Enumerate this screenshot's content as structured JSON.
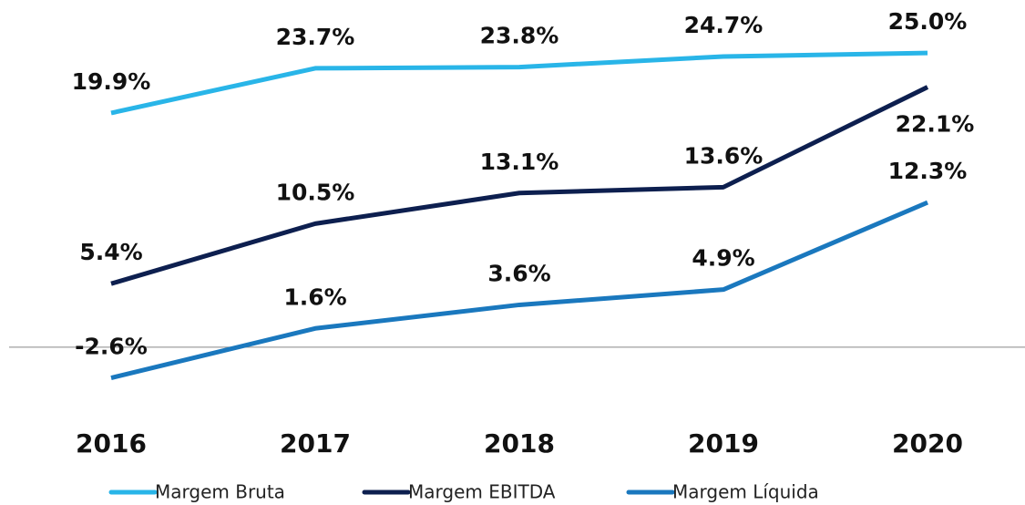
{
  "chart_data": {
    "type": "line",
    "categories": [
      "2016",
      "2017",
      "2018",
      "2019",
      "2020"
    ],
    "series": [
      {
        "name": "Margem Bruta",
        "color": "#29b5e8",
        "values": [
          19.9,
          23.7,
          23.8,
          24.7,
          25.0
        ],
        "value_labels": [
          "19.9%",
          "23.7%",
          "23.8%",
          "24.7%",
          "25.0%"
        ]
      },
      {
        "name": "Margem EBITDA",
        "color": "#0d1f4f",
        "values": [
          5.4,
          10.5,
          13.1,
          13.6,
          22.1
        ],
        "value_labels": [
          "5.4%",
          "10.5%",
          "13.1%",
          "13.6%",
          "22.1%"
        ]
      },
      {
        "name": "Margem Líquida",
        "color": "#1a78be",
        "values": [
          -2.6,
          1.6,
          3.6,
          4.9,
          12.3
        ],
        "value_labels": [
          "-2.6%",
          "1.6%",
          "3.6%",
          "4.9%",
          "12.3%"
        ]
      }
    ],
    "ylim": [
      -5,
      29.5
    ],
    "legend": "bottom"
  }
}
